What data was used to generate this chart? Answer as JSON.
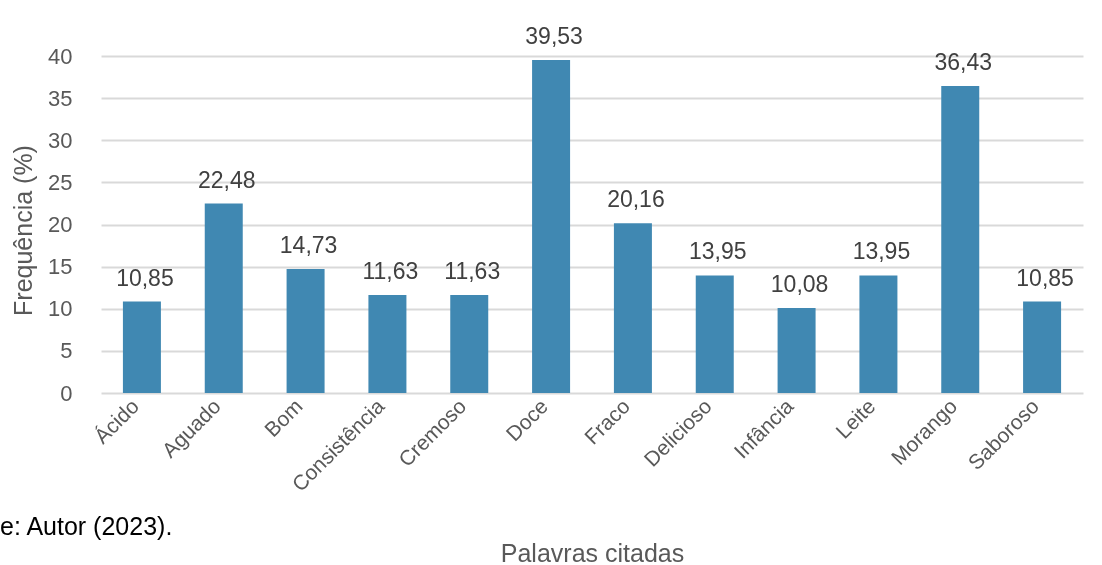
{
  "chart_data": {
    "type": "bar",
    "xlabel": "Palavras citadas",
    "ylabel": "Frequência (%)",
    "categories": [
      "Ácido",
      "Aguado",
      "Bom",
      "Consistência",
      "Cremoso",
      "Doce",
      "Fraco",
      "Delicioso",
      "Infância",
      "Leite",
      "Morango",
      "Saboroso"
    ],
    "values": [
      10.85,
      22.48,
      14.73,
      11.63,
      11.63,
      39.53,
      20.16,
      13.95,
      10.08,
      13.95,
      36.43,
      10.85
    ],
    "value_labels": [
      "10,85",
      "22,48",
      "14,73",
      "11,63",
      "11,63",
      "39,53",
      "20,16",
      "13,95",
      "10,08",
      "13,95",
      "36,43",
      "10,85"
    ],
    "color": "#4088b2",
    "ylim": [
      0,
      40
    ],
    "yticks": [
      0,
      5,
      10,
      15,
      20,
      25,
      30,
      35,
      40
    ],
    "grid": "y",
    "annotations": [
      "e: Autor (2023)."
    ]
  }
}
